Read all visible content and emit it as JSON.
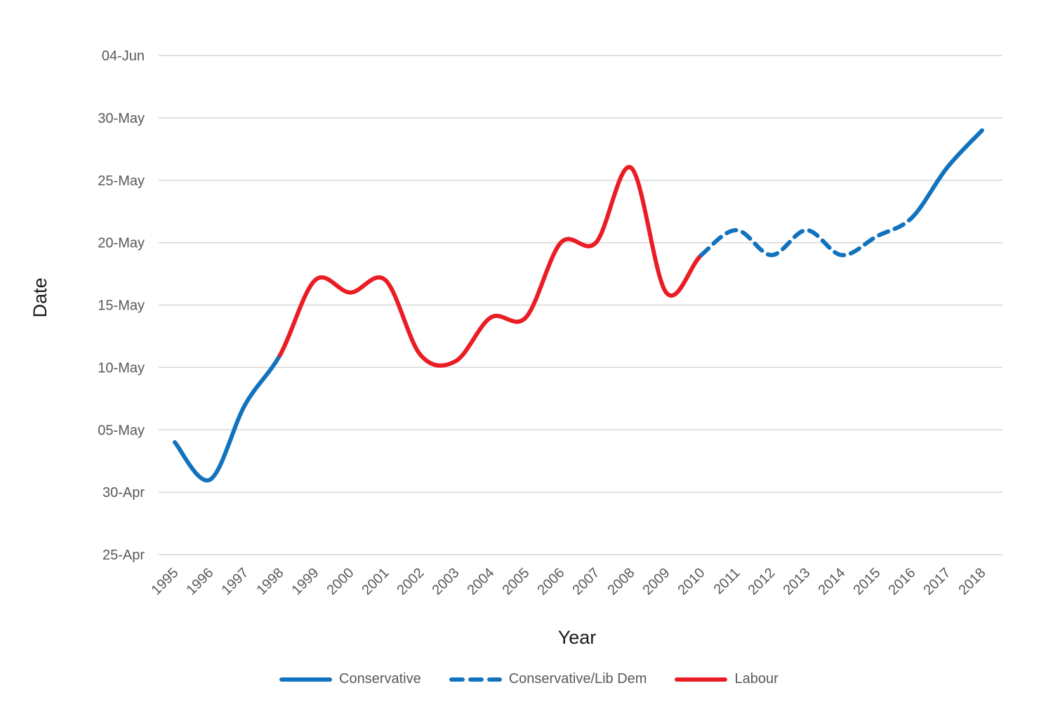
{
  "chart_data": {
    "type": "line",
    "title": "",
    "xlabel": "Year",
    "ylabel": "Date",
    "grid": "horizontal-only",
    "legend_position": "bottom",
    "xlim": [
      1995,
      2018
    ],
    "ylim_labels": [
      "25-Apr",
      "04-Jun"
    ],
    "x_ticks": [
      "1995",
      "1996",
      "1997",
      "1998",
      "1999",
      "2000",
      "2001",
      "2002",
      "2003",
      "2004",
      "2005",
      "2006",
      "2007",
      "2008",
      "2009",
      "2010",
      "2011",
      "2012",
      "2013",
      "2014",
      "2015",
      "2016",
      "2017",
      "2018"
    ],
    "y_ticks": [
      {
        "label": "04-Jun",
        "days_after_25_apr": 40
      },
      {
        "label": "30-May",
        "days_after_25_apr": 35
      },
      {
        "label": "25-May",
        "days_after_25_apr": 30
      },
      {
        "label": "20-May",
        "days_after_25_apr": 25
      },
      {
        "label": "15-May",
        "days_after_25_apr": 20
      },
      {
        "label": "10-May",
        "days_after_25_apr": 15
      },
      {
        "label": "05-May",
        "days_after_25_apr": 10
      },
      {
        "label": "30-Apr",
        "days_after_25_apr": 5
      },
      {
        "label": "25-Apr",
        "days_after_25_apr": 0
      }
    ],
    "points": [
      {
        "year": 1995,
        "date": "04-May",
        "days_after_25_apr": 9
      },
      {
        "year": 1996,
        "date": "01-May",
        "days_after_25_apr": 6
      },
      {
        "year": 1997,
        "date": "07-May",
        "days_after_25_apr": 12
      },
      {
        "year": 1998,
        "date": "11-May",
        "days_after_25_apr": 16
      },
      {
        "year": 1999,
        "date": "17-May",
        "days_after_25_apr": 22
      },
      {
        "year": 2000,
        "date": "16-May",
        "days_after_25_apr": 21
      },
      {
        "year": 2001,
        "date": "17-May",
        "days_after_25_apr": 22
      },
      {
        "year": 2002,
        "date": "11-May",
        "days_after_25_apr": 16
      },
      {
        "year": 2003,
        "date": "10-May",
        "days_after_25_apr": 15.5
      },
      {
        "year": 2004,
        "date": "14-May",
        "days_after_25_apr": 19
      },
      {
        "year": 2005,
        "date": "14-May",
        "days_after_25_apr": 19
      },
      {
        "year": 2006,
        "date": "20-May",
        "days_after_25_apr": 25
      },
      {
        "year": 2007,
        "date": "20-May",
        "days_after_25_apr": 25
      },
      {
        "year": 2008,
        "date": "26-May",
        "days_after_25_apr": 31
      },
      {
        "year": 2009,
        "date": "16-May",
        "days_after_25_apr": 21
      },
      {
        "year": 2010,
        "date": "19-May",
        "days_after_25_apr": 24
      },
      {
        "year": 2011,
        "date": "21-May",
        "days_after_25_apr": 26
      },
      {
        "year": 2012,
        "date": "19-May",
        "days_after_25_apr": 24
      },
      {
        "year": 2013,
        "date": "21-May",
        "days_after_25_apr": 26
      },
      {
        "year": 2014,
        "date": "19-May",
        "days_after_25_apr": 24
      },
      {
        "year": 2015,
        "date": "21-May",
        "days_after_25_apr": 25.5
      },
      {
        "year": 2016,
        "date": "22-May",
        "days_after_25_apr": 27
      },
      {
        "year": 2017,
        "date": "26-May",
        "days_after_25_apr": 31
      },
      {
        "year": 2018,
        "date": "29-May",
        "days_after_25_apr": 34
      }
    ],
    "series": [
      {
        "name": "Conservative",
        "style": "solid",
        "color": "#1172BE",
        "from_year": 1995,
        "to_year": 1998
      },
      {
        "name": "Labour",
        "style": "solid",
        "color": "#EA1C24",
        "from_year": 1998,
        "to_year": 2010
      },
      {
        "name": "Conservative/Lib Dem",
        "style": "dashed",
        "color": "#1172BE",
        "from_year": 2010,
        "to_year": 2016
      },
      {
        "name": "Conservative",
        "style": "solid",
        "color": "#1172BE",
        "from_year": 2016,
        "to_year": 2018
      }
    ],
    "legend": [
      {
        "label": "Conservative",
        "style": "solid",
        "color": "#1172BE"
      },
      {
        "label": "Conservative/Lib Dem",
        "style": "dashed",
        "color": "#1172BE"
      },
      {
        "label": "Labour",
        "style": "solid",
        "color": "#EA1C24"
      }
    ],
    "colors": {
      "conservative_blue": "#1172BE",
      "labour_red": "#EA1C24",
      "gridline": "#D6D6D6",
      "tick_text": "#595959",
      "axis_title_text": "#1A1A1A"
    }
  }
}
